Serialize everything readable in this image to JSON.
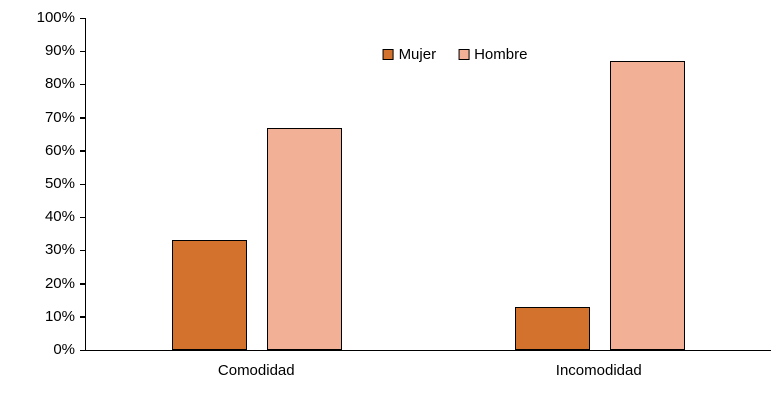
{
  "chart_data": {
    "type": "bar",
    "title": "",
    "categories": [
      "Comodidad",
      "Incomodidad"
    ],
    "series": [
      {
        "name": "Mujer",
        "color": "#D2722D",
        "values": [
          33,
          13
        ]
      },
      {
        "name": "Hombre",
        "color": "#F2B096",
        "values": [
          67,
          87
        ]
      }
    ],
    "y_axis": {
      "min": 0,
      "max": 100,
      "step": 10,
      "suffix": "%"
    },
    "xlabel": "",
    "ylabel": "",
    "grid": false,
    "legend_position": "top-center",
    "bar_border_color": "#000000",
    "axis_color": "#000000"
  }
}
